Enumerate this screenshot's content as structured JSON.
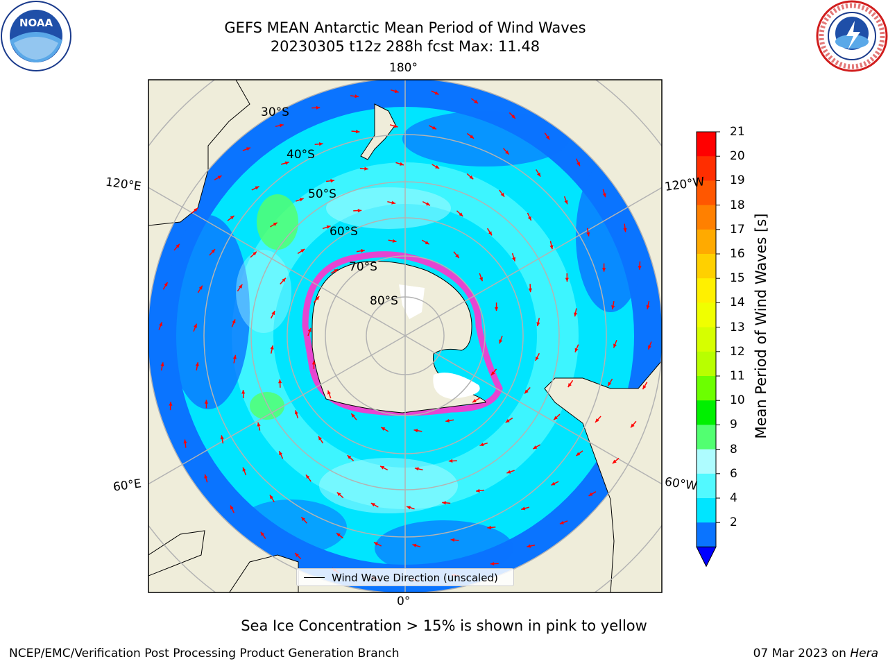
{
  "header": {
    "title_line1": "GEFS MEAN Antarctic Mean Period of Wind Waves",
    "title_line2": "20230305 t12z 288h fcst   Max: 11.48"
  },
  "logos": {
    "left_icon": "noaa-logo-icon",
    "left_text": "NOAA",
    "right_icon": "national-weather-service-logo-icon"
  },
  "map": {
    "projection": "south-polar-stereographic",
    "longitude_labels": [
      "180°",
      "120°E",
      "120°W",
      "60°E",
      "60°W",
      "0°"
    ],
    "latitude_labels": [
      "30°S",
      "40°S",
      "50°S",
      "60°S",
      "70°S",
      "80°S"
    ],
    "colors": {
      "land": "#efedda",
      "ocean_low": "#0a74ff",
      "ocean_mid": "#00e5ff",
      "ocean_high": "#aefcff",
      "ocean_green": "#52ff71",
      "sea_ice": "#ff33cc",
      "arrow": "#ff0000",
      "grid": "#b3b3b3"
    }
  },
  "legend": {
    "label": "Wind Wave Direction (unscaled)"
  },
  "colorbar": {
    "label": "Mean Period of Wind Waves [s]",
    "ticks": [
      "21",
      "20",
      "19",
      "18",
      "17",
      "16",
      "15",
      "14",
      "13",
      "12",
      "11",
      "10",
      "9",
      "8",
      "6",
      "4",
      "2"
    ],
    "tick_values": [
      21,
      20,
      19,
      18,
      17,
      16,
      15,
      14,
      13,
      12,
      11,
      10,
      9,
      8,
      6,
      4,
      2
    ],
    "colors": [
      "#ff0000",
      "#ff2e00",
      "#ff5700",
      "#ff8000",
      "#ffaa00",
      "#ffd000",
      "#fff000",
      "#f0ff00",
      "#d6ff00",
      "#b8ff00",
      "#6cff00",
      "#00f000",
      "#52ff71",
      "#aefcff",
      "#52f9ff",
      "#00e5ff",
      "#0a74ff"
    ],
    "extend_color": "#0000ff"
  },
  "note": "Sea Ice Concentration > 15% is shown in pink to yellow",
  "footer": {
    "left": "NCEP/EMC/Verification Post Processing Product Generation Branch",
    "right_prefix": "07 Mar 2023 on ",
    "right_italic": "Hera"
  }
}
